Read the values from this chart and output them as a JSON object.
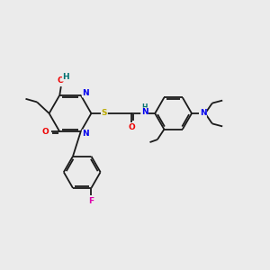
{
  "bg_color": "#ebebeb",
  "bond_color": "#1a1a1a",
  "atom_colors": {
    "N": "#0000ee",
    "O": "#ee0000",
    "S": "#bbaa00",
    "F": "#dd00aa",
    "H": "#007070",
    "C": "#1a1a1a"
  },
  "figsize": [
    3.0,
    3.0
  ],
  "dpi": 100
}
